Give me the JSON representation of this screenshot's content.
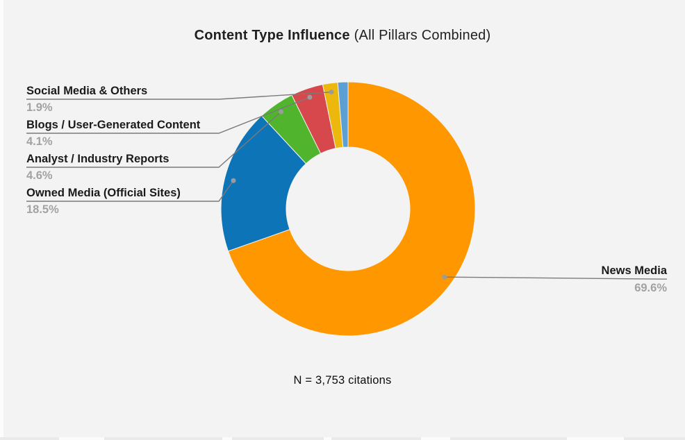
{
  "title": {
    "bold": "Content Type Influence",
    "regular": "(All Pillars Combined)"
  },
  "footnote": "N = 3,753 citations",
  "colors": {
    "background": "#f2f3f2",
    "leader_line": "#7a7a7a",
    "leader_dot": "#9b9b9b",
    "label_text": "#1a1a1a",
    "percent_text": "#a2a2a2"
  },
  "chart_data": {
    "type": "pie",
    "title": "Content Type Influence (All Pillars Combined)",
    "subtitle": "N = 3,753 citations",
    "hole_ratio": 0.49,
    "start_angle_deg": 0,
    "direction": "clockwise",
    "legend_position": "none",
    "segments": [
      {
        "label": "News Media",
        "value": 69.6,
        "pct_label": "69.6%",
        "color": "#FF9800",
        "side": "right"
      },
      {
        "label": "Owned Media (Official Sites)",
        "value": 18.5,
        "pct_label": "18.5%",
        "color": "#0E74B8",
        "side": "left"
      },
      {
        "label": "Analyst / Industry Reports",
        "value": 4.6,
        "pct_label": "4.6%",
        "color": "#50B42D",
        "side": "left"
      },
      {
        "label": "Blogs / User-Generated Content",
        "value": 4.1,
        "pct_label": "4.1%",
        "color": "#D6484C",
        "side": "left"
      },
      {
        "label": "Social Media & Others",
        "value": 1.9,
        "pct_label": "1.9%",
        "color": "#ECB80E",
        "side": "left"
      },
      {
        "label": "",
        "value": 1.3,
        "pct_label": "",
        "color": "#5C9FD4",
        "side": "none"
      }
    ]
  }
}
